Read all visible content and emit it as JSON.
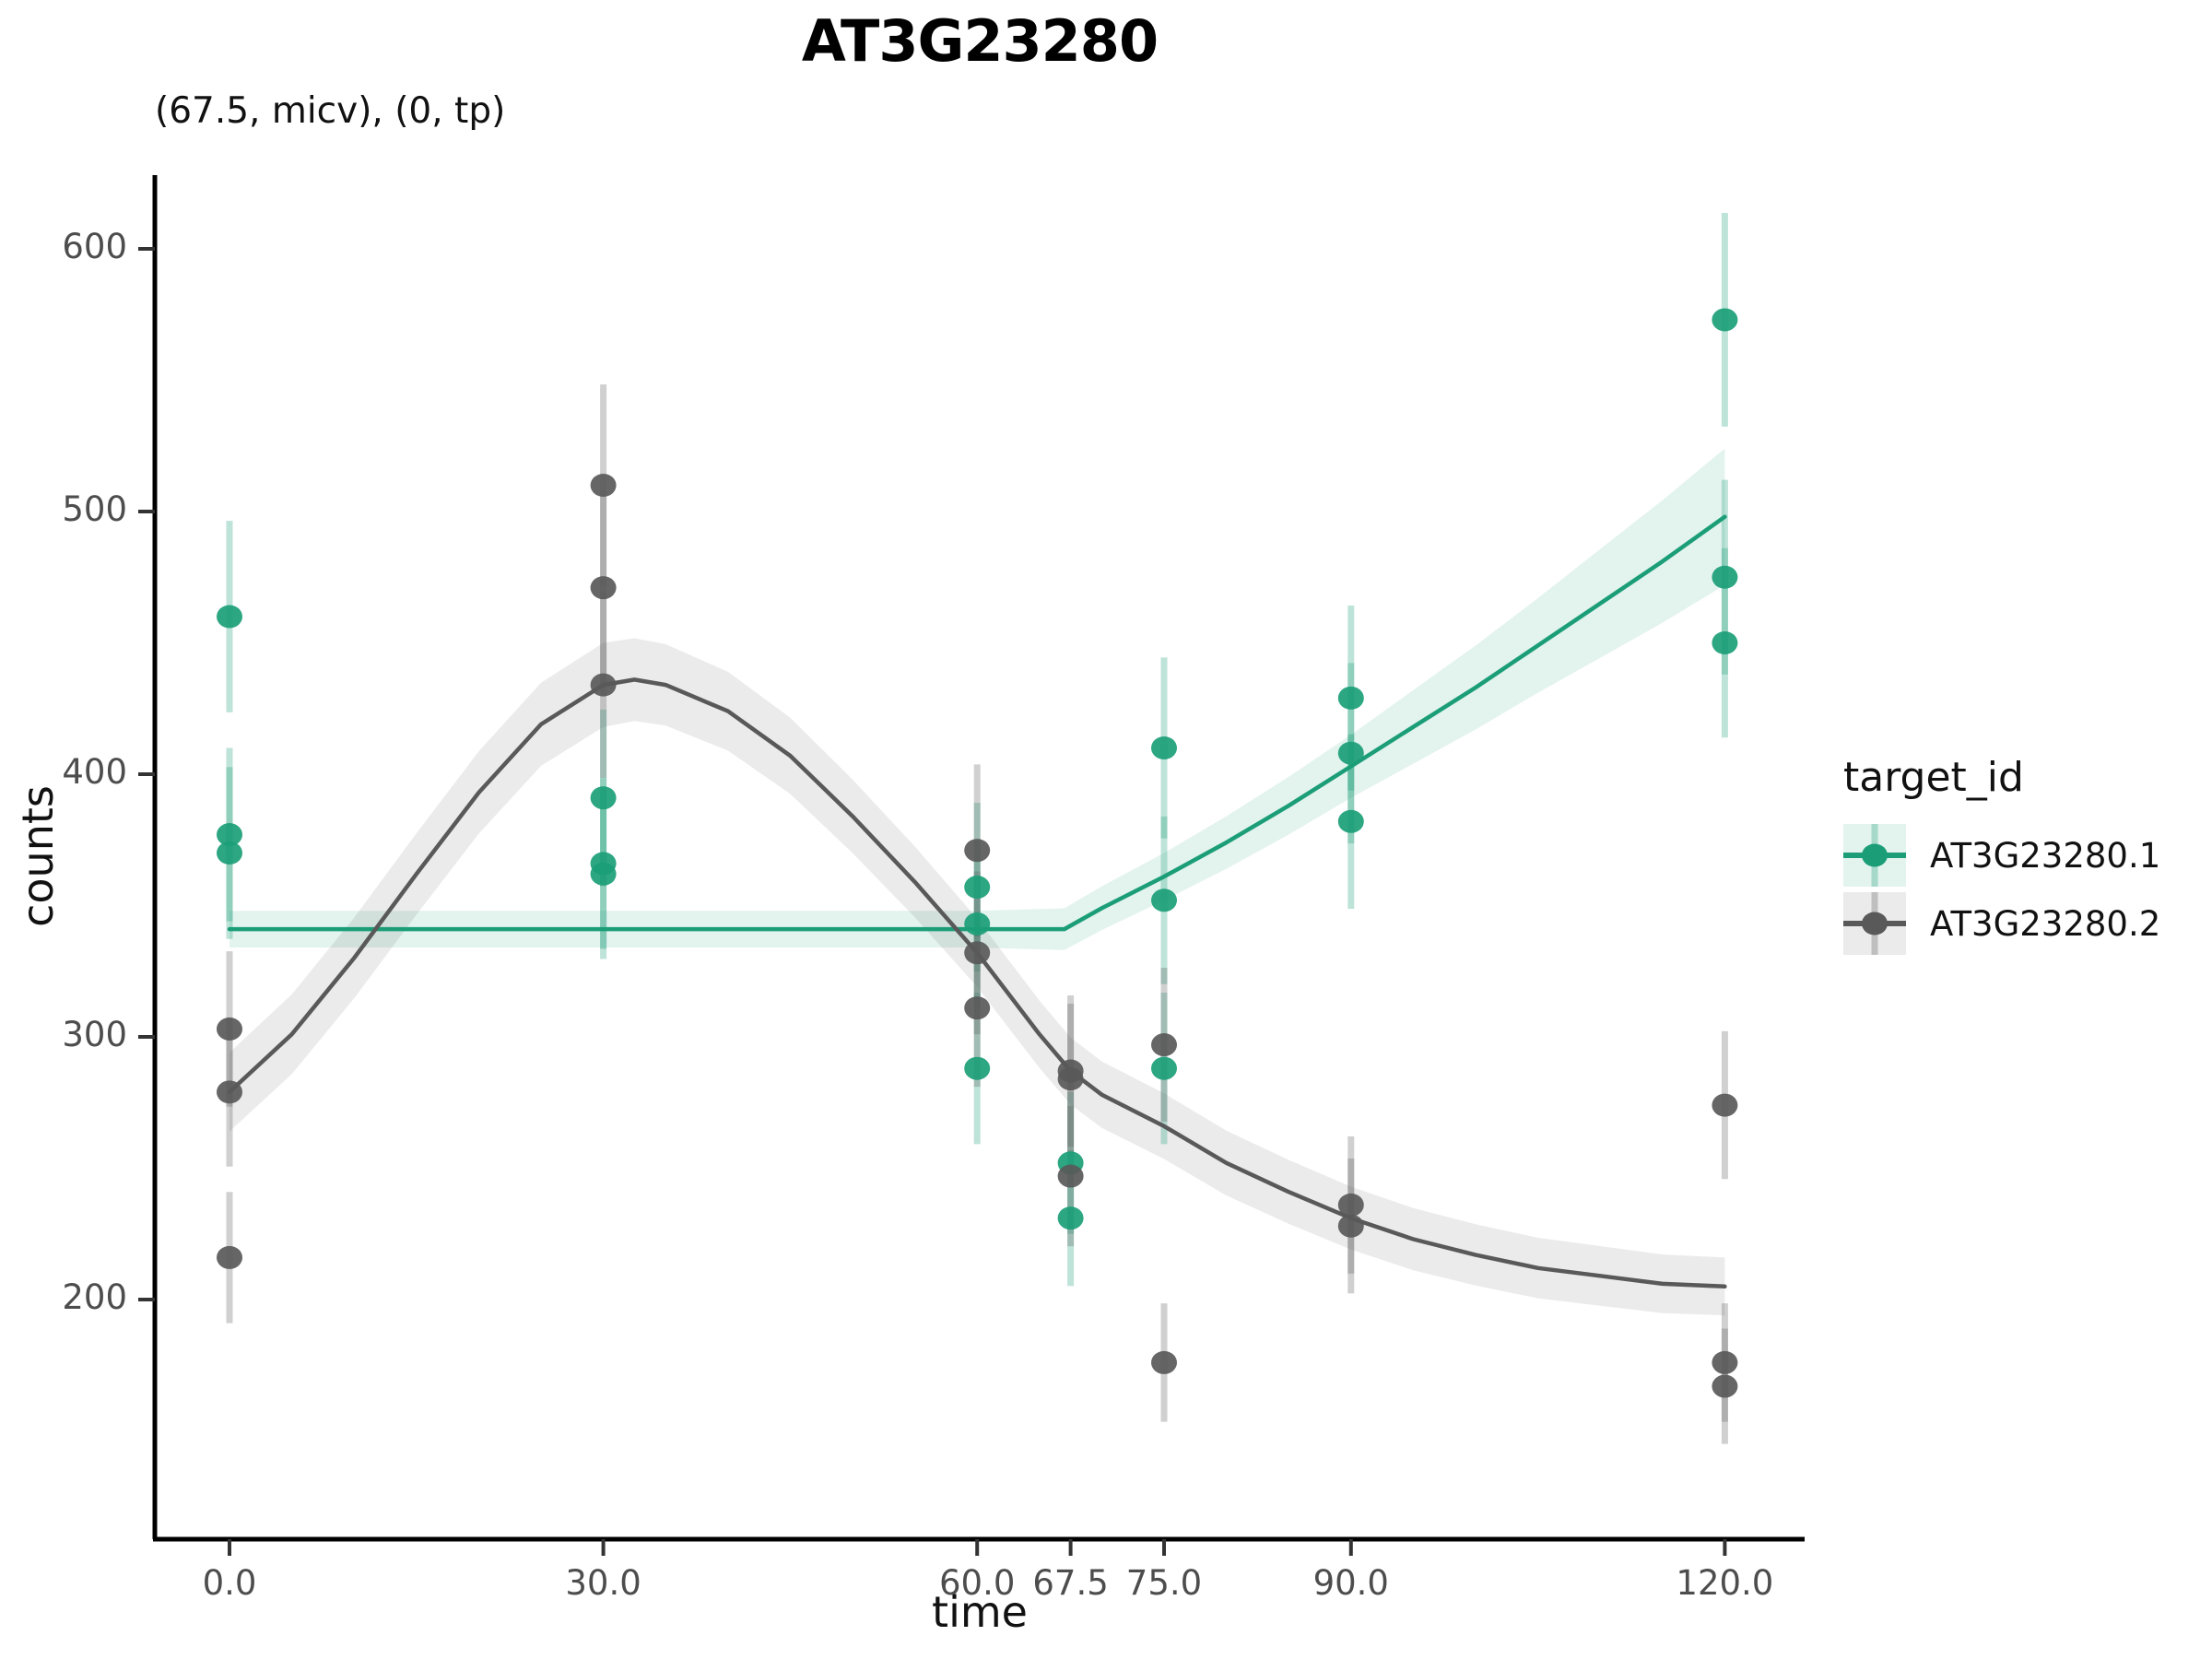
{
  "title": "AT3G23280",
  "subtitle": "(67.5, micv), (0, tp)",
  "x_axis": {
    "label": "time"
  },
  "y_axis": {
    "label": "counts"
  },
  "legend": {
    "title": "target_id",
    "entries": [
      {
        "label": "AT3G23280.1",
        "color": "#1b9e77",
        "bar_color": "rgba(27,158,119,0.30)",
        "ribbon_color": "rgba(27,158,119,0.12)"
      },
      {
        "label": "AT3G23280.2",
        "color": "#595959",
        "bar_color": "rgba(89,89,89,0.30)",
        "ribbon_color": "rgba(89,89,89,0.12)"
      }
    ]
  },
  "chart_data": {
    "type": "scatter",
    "title": "AT3G23280",
    "subtitle": "(67.5, micv), (0, tp)",
    "xlabel": "time",
    "ylabel": "counts",
    "xlim": [
      -6,
      126.5
    ],
    "ylim": [
      109,
      628
    ],
    "grid": false,
    "legend_position": "right",
    "legend_title": "target_id",
    "x_ticks": {
      "values": [
        0,
        30,
        60,
        67.5,
        75,
        90,
        120
      ],
      "labels": [
        "0.0",
        "30.0",
        "60.0",
        "67.5",
        "75.0",
        "90.0",
        "120.0"
      ]
    },
    "y_ticks": {
      "values": [
        200,
        300,
        400,
        500,
        600
      ],
      "labels": [
        "200",
        "300",
        "400",
        "500",
        "600"
      ]
    },
    "error_bar_halfwidth_rule": "approx 1.7 * sqrt(count) per replicate point",
    "series": [
      {
        "name": "AT3G23280.1",
        "color": "#1b9e77",
        "points": [
          {
            "t": 0,
            "counts": [
              460,
              377,
              370
            ]
          },
          {
            "t": 30,
            "counts": [
              391,
              366,
              362
            ]
          },
          {
            "t": 60,
            "counts": [
              357,
              343,
              288
            ]
          },
          {
            "t": 67.5,
            "counts": [
              252,
              231
            ]
          },
          {
            "t": 75,
            "counts": [
              410,
              352,
              288
            ]
          },
          {
            "t": 90,
            "counts": [
              429,
              408,
              382
            ]
          },
          {
            "t": 120,
            "counts": [
              573,
              475,
              450
            ]
          }
        ],
        "trend": [
          [
            0,
            341
          ],
          [
            30,
            341
          ],
          [
            60,
            341
          ],
          [
            67,
            341
          ],
          [
            70,
            349
          ],
          [
            75,
            361
          ],
          [
            80,
            374
          ],
          [
            85,
            388
          ],
          [
            90,
            403
          ],
          [
            95,
            418
          ],
          [
            100,
            433
          ],
          [
            105,
            449
          ],
          [
            110,
            465
          ],
          [
            115,
            481
          ],
          [
            120,
            498
          ]
        ],
        "ci_halfwidth": [
          [
            0,
            7
          ],
          [
            60,
            7
          ],
          [
            67.5,
            8
          ],
          [
            75,
            9
          ],
          [
            90,
            12
          ],
          [
            105,
            18
          ],
          [
            120,
            26
          ]
        ]
      },
      {
        "name": "AT3G23280.2",
        "color": "#595959",
        "points": [
          {
            "t": 0,
            "counts": [
              303,
              279,
              216
            ]
          },
          {
            "t": 30,
            "counts": [
              510,
              471,
              434
            ]
          },
          {
            "t": 60,
            "counts": [
              371,
              332,
              311
            ]
          },
          {
            "t": 67.5,
            "counts": [
              287,
              284,
              247
            ]
          },
          {
            "t": 75,
            "counts": [
              297,
              176
            ]
          },
          {
            "t": 90,
            "counts": [
              236,
              228
            ]
          },
          {
            "t": 120,
            "counts": [
              274,
              176,
              167
            ]
          }
        ],
        "trend": [
          [
            0,
            279
          ],
          [
            5,
            301
          ],
          [
            10,
            330
          ],
          [
            15,
            362
          ],
          [
            20,
            393
          ],
          [
            25,
            419
          ],
          [
            30,
            434
          ],
          [
            32.5,
            436
          ],
          [
            35,
            434
          ],
          [
            40,
            424
          ],
          [
            45,
            407
          ],
          [
            50,
            384
          ],
          [
            55,
            359
          ],
          [
            60,
            332
          ],
          [
            65,
            301
          ],
          [
            67.5,
            287
          ],
          [
            70,
            278
          ],
          [
            75,
            266
          ],
          [
            80,
            252
          ],
          [
            85,
            241
          ],
          [
            90,
            231
          ],
          [
            95,
            223
          ],
          [
            100,
            217
          ],
          [
            105,
            212
          ],
          [
            110,
            209
          ],
          [
            115,
            206
          ],
          [
            120,
            205
          ]
        ],
        "ci_halfwidth": [
          [
            0,
            15
          ],
          [
            30,
            16
          ],
          [
            60,
            13
          ],
          [
            90,
            12
          ],
          [
            120,
            11
          ]
        ]
      }
    ]
  }
}
